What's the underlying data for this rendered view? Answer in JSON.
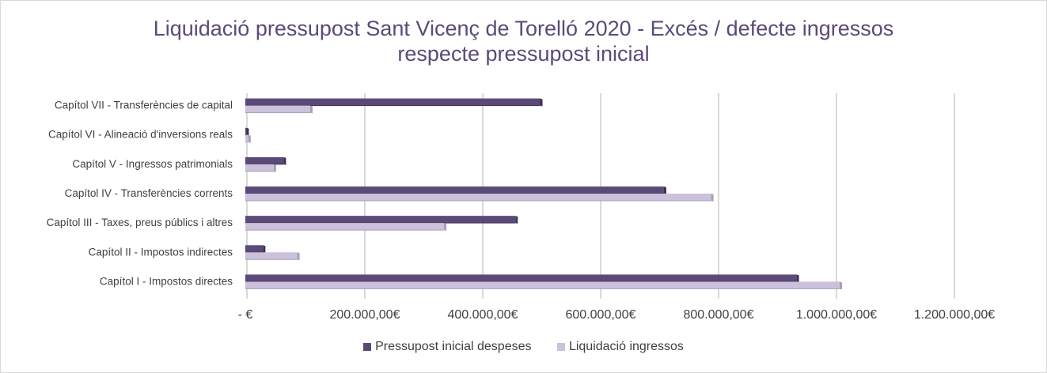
{
  "chart_data": {
    "type": "bar",
    "orientation": "horizontal",
    "title": "Liquidació pressupost Sant Vicenç de Torelló  2020 - Excés / defecte ingressos respecte pressupost inicial",
    "title_lines": [
      "Liquidació pressupost Sant Vicenç de Torelló  2020 - Excés / defecte ingressos",
      "respecte pressupost inicial"
    ],
    "categories": [
      "Capítol I - Impostos directes",
      "Capítol II - Impostos indirectes",
      "Capítol III - Taxes, preus públics i altres",
      "Capítol IV - Transferències corrents",
      "Capítol V - Ingressos patrimonials",
      "Capítol VI - Alineació d'inversions reals",
      "Capítol VII - Transferències de capital"
    ],
    "series": [
      {
        "name": "Pressupost inicial despeses",
        "color": "#5b4a78",
        "values": [
          935000,
          30000,
          458000,
          710000,
          65000,
          2000,
          500000
        ]
      },
      {
        "name": "Liquidació ingressos",
        "color": "#ccc1dc",
        "values": [
          1008000,
          88000,
          337000,
          790000,
          48000,
          5000,
          110000
        ]
      }
    ],
    "xlim": [
      0,
      1200000
    ],
    "ticks": [
      0,
      200000,
      400000,
      600000,
      800000,
      1000000,
      1200000
    ],
    "tick_labels": [
      "-  €",
      "200.000,00€",
      "400.000,00€",
      "600.000,00€",
      "800.000,00€",
      "1.000.000,00€",
      "1.200.000,00€"
    ],
    "grid": true,
    "legend_position": "bottom"
  }
}
